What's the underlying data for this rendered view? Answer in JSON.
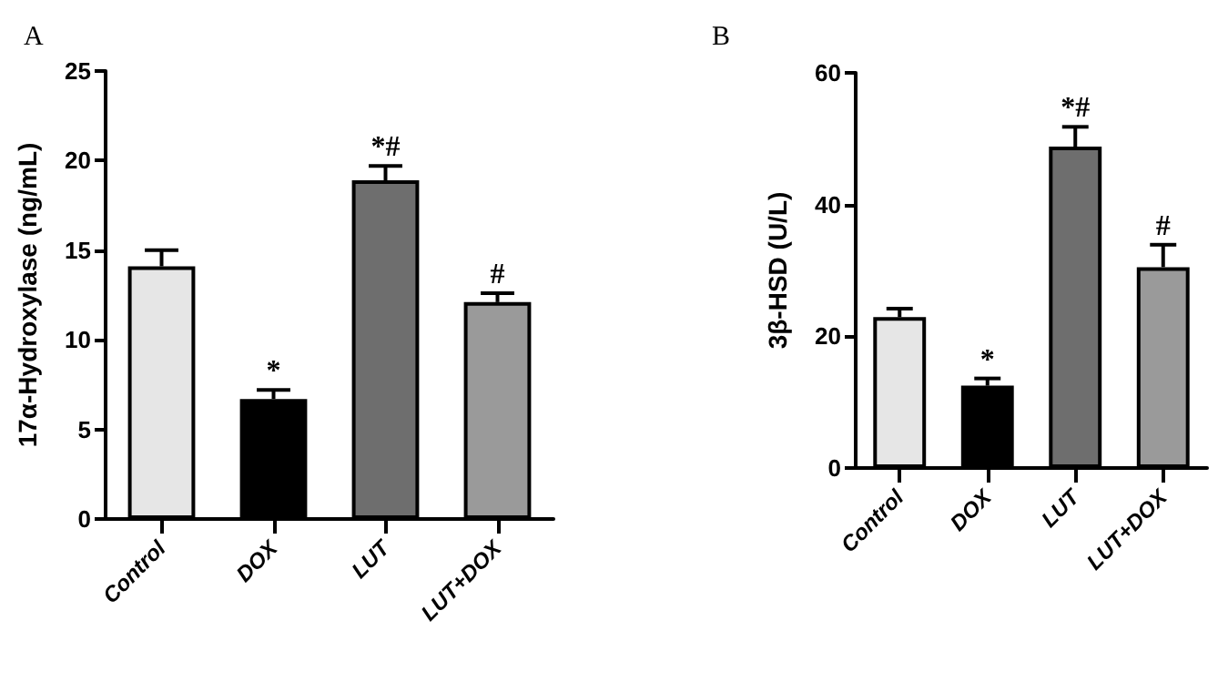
{
  "chart_data": [
    {
      "type": "bar",
      "title": "A",
      "ylabel": "17α-Hydroxylase (ng/mL)",
      "categories": [
        "Control",
        "DOX",
        "LUT",
        "LUT+DOX"
      ],
      "values": [
        14.1,
        6.7,
        18.9,
        12.1
      ],
      "errors": [
        0.9,
        0.5,
        0.8,
        0.5
      ],
      "colors": [
        "#e6e6e6",
        "#000000",
        "#6e6e6e",
        "#9a9a9a"
      ],
      "ylim": [
        0,
        25
      ],
      "yticks": [
        0,
        5,
        10,
        15,
        20,
        25
      ],
      "grid": false,
      "annotations": [
        {
          "text": "*",
          "x": "DOX",
          "y": 7.2
        },
        {
          "text": "*#",
          "x": "LUT",
          "y": 19.7
        },
        {
          "text": "#",
          "x": "LUT+DOX",
          "y": 12.6
        }
      ]
    },
    {
      "type": "bar",
      "title": "B",
      "ylabel": "3β-HSD (U/L)",
      "categories": [
        "Control",
        "DOX",
        "LUT",
        "LUT+DOX"
      ],
      "values": [
        22.9,
        12.5,
        48.8,
        30.5
      ],
      "errors": [
        1.3,
        1.1,
        3.0,
        3.4
      ],
      "colors": [
        "#e6e6e6",
        "#000000",
        "#6e6e6e",
        "#9a9a9a"
      ],
      "ylim": [
        0,
        60
      ],
      "yticks": [
        0,
        20,
        40,
        60
      ],
      "grid": false,
      "annotations": [
        {
          "text": "*",
          "x": "DOX",
          "y": 13.6
        },
        {
          "text": "*#",
          "x": "LUT",
          "y": 51.8
        },
        {
          "text": "#",
          "x": "LUT+DOX",
          "y": 33.9
        }
      ]
    }
  ]
}
